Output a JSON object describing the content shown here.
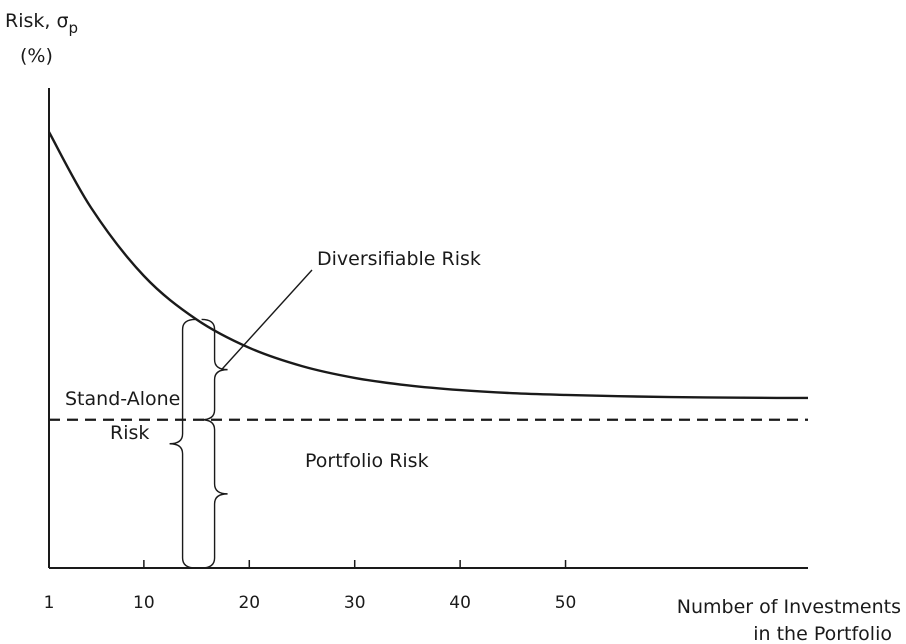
{
  "chart_data": {
    "type": "line",
    "title": "",
    "ylabel": {
      "main": "Risk, σ",
      "subscript": "p",
      "unit": "(%)"
    },
    "xlabel": [
      "Number of Investments",
      "in the Portfolio"
    ],
    "x_ticks": [
      1,
      10,
      20,
      30,
      40,
      50
    ],
    "xlim": [
      1,
      73
    ],
    "grid": false,
    "legend": "none",
    "series": [
      {
        "x": [
          1,
          5,
          10,
          15,
          20,
          25,
          30,
          35,
          40,
          45,
          50,
          55,
          60,
          65,
          70,
          73
        ],
        "y": [
          100,
          82.6,
          67.0,
          57.0,
          50.5,
          46.3,
          43.6,
          41.9,
          40.8,
          40.1,
          39.7,
          39.4,
          39.2,
          39.1,
          39.0,
          39.0
        ]
      }
    ],
    "reference_lines": [
      {
        "style": "dashed",
        "y": 34
      }
    ],
    "annotations": {
      "diversifiable": "Diversifiable Risk",
      "stand_alone_line1": "Stand-Alone",
      "stand_alone_line2": "Risk",
      "portfolio": "Portfolio Risk"
    },
    "bracket_x": 15,
    "colors": {
      "ink": "#1a1a1a",
      "background": "#ffffff"
    }
  }
}
